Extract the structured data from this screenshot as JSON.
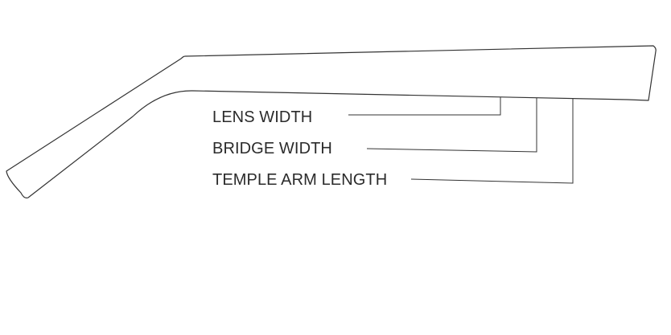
{
  "diagram": {
    "labels": {
      "lens_width": "LENS WIDTH",
      "bridge_width": "BRIDGE WIDTH",
      "temple_arm_length": "TEMPLE ARM LENGTH"
    },
    "colors": {
      "stroke": "#333333",
      "text": "#2b2b2b",
      "background": "#ffffff"
    }
  }
}
